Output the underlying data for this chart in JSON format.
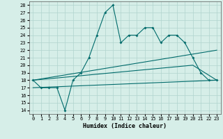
{
  "title": "",
  "xlabel": "Humidex (Indice chaleur)",
  "ylabel": "",
  "bg_color": "#d6eee8",
  "line_color": "#006b6b",
  "grid_color": "#b0d4ce",
  "xlim": [
    -0.5,
    23.5
  ],
  "ylim": [
    13.5,
    28.5
  ],
  "yticks": [
    14,
    15,
    16,
    17,
    18,
    19,
    20,
    21,
    22,
    23,
    24,
    25,
    26,
    27,
    28
  ],
  "xticks": [
    0,
    1,
    2,
    3,
    4,
    5,
    6,
    7,
    8,
    9,
    10,
    11,
    12,
    13,
    14,
    15,
    16,
    17,
    18,
    19,
    20,
    21,
    22,
    23
  ],
  "series1_x": [
    0,
    1,
    2,
    3,
    4,
    5,
    6,
    7,
    8,
    9,
    10,
    11,
    12,
    13,
    14,
    15,
    16,
    17,
    18,
    19,
    20,
    21,
    22,
    23
  ],
  "series1_y": [
    18,
    17,
    17,
    17,
    14,
    18,
    19,
    21,
    24,
    27,
    28,
    23,
    24,
    24,
    25,
    25,
    23,
    24,
    24,
    23,
    21,
    19,
    18,
    18
  ],
  "series2_x": [
    0,
    23
  ],
  "series2_y": [
    18,
    22
  ],
  "series3_x": [
    0,
    23
  ],
  "series3_y": [
    17,
    18
  ],
  "series4_x": [
    0,
    20,
    23
  ],
  "series4_y": [
    18,
    20,
    18
  ]
}
